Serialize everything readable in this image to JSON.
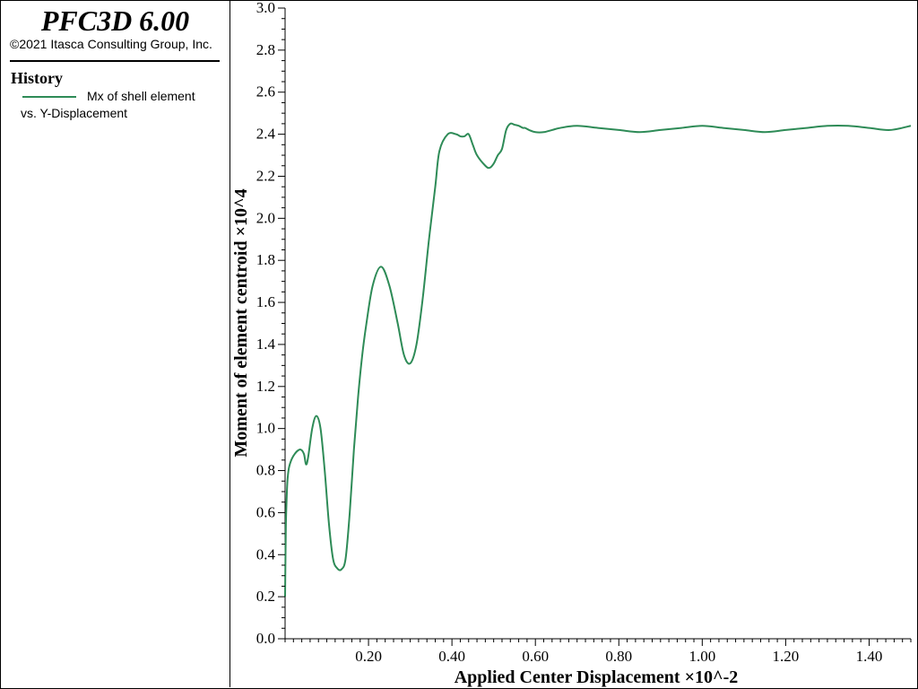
{
  "app": {
    "title": "PFC3D 6.00",
    "copyright": "©2021 Itasca Consulting Group, Inc."
  },
  "legend": {
    "heading": "History",
    "entries": [
      {
        "line1": "Mx of shell element",
        "line2": "vs. Y-Displacement",
        "color": "#2e8b57"
      }
    ]
  },
  "chart_data": {
    "type": "line",
    "xlabel": "Applied Center Displacement ×10^-2",
    "ylabel": "Moment of element centroid ×10^4",
    "xlim": [
      0.0,
      1.5
    ],
    "ylim": [
      0.0,
      3.0
    ],
    "x_ticks": [
      "0.20",
      "0.40",
      "0.60",
      "0.80",
      "1.00",
      "1.20",
      "1.40"
    ],
    "y_ticks": [
      "0.0",
      "0.2",
      "0.4",
      "0.6",
      "0.8",
      "1.0",
      "1.2",
      "1.4",
      "1.6",
      "1.8",
      "2.0",
      "2.2",
      "2.4",
      "2.6",
      "2.8",
      "3.0"
    ],
    "grid": false,
    "series": [
      {
        "color": "#2e8b57",
        "x": [
          0.0,
          0.001,
          0.002,
          0.004,
          0.006,
          0.01,
          0.02,
          0.035,
          0.045,
          0.05,
          0.055,
          0.065,
          0.075,
          0.085,
          0.095,
          0.105,
          0.115,
          0.125,
          0.135,
          0.145,
          0.155,
          0.165,
          0.175,
          0.185,
          0.195,
          0.21,
          0.23,
          0.25,
          0.27,
          0.285,
          0.3,
          0.315,
          0.33,
          0.345,
          0.36,
          0.37,
          0.39,
          0.41,
          0.42,
          0.43,
          0.44,
          0.45,
          0.46,
          0.48,
          0.49,
          0.5,
          0.51,
          0.52,
          0.53,
          0.54,
          0.55,
          0.56,
          0.57,
          0.575,
          0.585,
          0.6,
          0.62,
          0.64,
          0.66,
          0.7,
          0.75,
          0.8,
          0.85,
          0.9,
          0.95,
          1.0,
          1.05,
          1.1,
          1.15,
          1.2,
          1.25,
          1.3,
          1.35,
          1.4,
          1.45,
          1.5
        ],
        "y": [
          0.2,
          0.4,
          0.55,
          0.68,
          0.76,
          0.82,
          0.87,
          0.9,
          0.88,
          0.83,
          0.86,
          1.0,
          1.06,
          1.0,
          0.8,
          0.55,
          0.38,
          0.335,
          0.33,
          0.38,
          0.6,
          0.9,
          1.15,
          1.35,
          1.5,
          1.68,
          1.77,
          1.68,
          1.5,
          1.35,
          1.31,
          1.4,
          1.62,
          1.9,
          2.15,
          2.32,
          2.4,
          2.4,
          2.39,
          2.39,
          2.4,
          2.35,
          2.3,
          2.25,
          2.24,
          2.26,
          2.3,
          2.33,
          2.42,
          2.45,
          2.445,
          2.44,
          2.43,
          2.43,
          2.42,
          2.41,
          2.41,
          2.42,
          2.43,
          2.44,
          2.43,
          2.42,
          2.41,
          2.42,
          2.43,
          2.44,
          2.43,
          2.42,
          2.41,
          2.42,
          2.43,
          2.44,
          2.44,
          2.43,
          2.42,
          2.44
        ]
      }
    ]
  }
}
